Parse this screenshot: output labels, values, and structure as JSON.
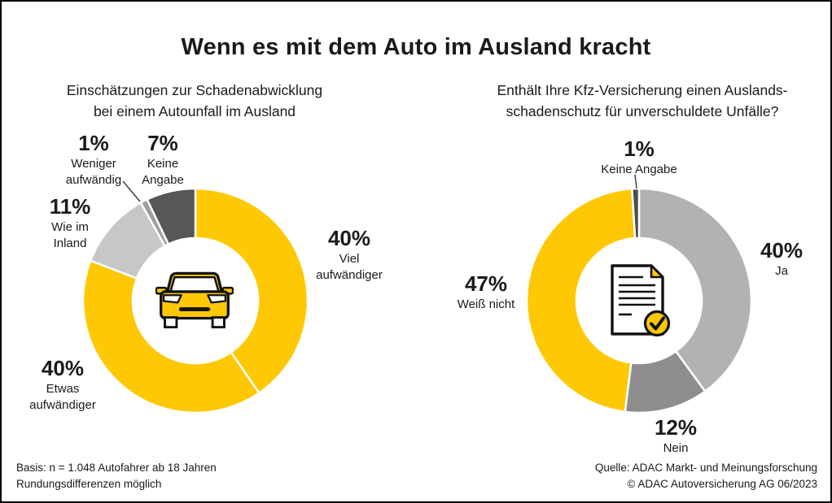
{
  "title": "Wenn es mit dem Auto im Ausland kracht",
  "colors": {
    "brand_yellow": "#FFC805",
    "light_gray": "#C7C7C7",
    "mid_gray": "#9E9E9E",
    "dark_gray": "#575757",
    "ja_gray": "#B2B2B2",
    "nein_gray": "#8D8D8D",
    "sliver_dark": "#4D4D4D",
    "text": "#1A1A1A"
  },
  "chart_data": [
    {
      "type": "pie",
      "variant": "donut",
      "unit": "%",
      "start_angle_deg": 0,
      "direction": "clockwise",
      "center_icon": "car-icon",
      "subtitle_lines": [
        "Einschätzungen zur Schadenabwicklung",
        "bei einem Autounfall im Ausland"
      ],
      "segments": [
        {
          "label": "Viel aufwändiger",
          "value": 40,
          "pct_text": "40%",
          "color": "#FFC805"
        },
        {
          "label": "Etwas aufwändiger",
          "value": 40,
          "pct_text": "40%",
          "color": "#FFC805"
        },
        {
          "label": "Wie im Inland",
          "value": 11,
          "pct_text": "11%",
          "color": "#C7C7C7"
        },
        {
          "label": "Weniger aufwändig",
          "value": 1,
          "pct_text": "1%",
          "color": "#9E9E9E"
        },
        {
          "label": "Keine Angabe",
          "value": 7,
          "pct_text": "7%",
          "color": "#575757"
        }
      ]
    },
    {
      "type": "pie",
      "variant": "donut",
      "unit": "%",
      "start_angle_deg": 0,
      "direction": "clockwise",
      "center_icon": "document-check-icon",
      "subtitle_lines": [
        "Enthält Ihre Kfz-Versicherung einen Auslands-",
        "schadenschutz für unverschuldete Unfälle?"
      ],
      "segments": [
        {
          "label": "Ja",
          "value": 40,
          "pct_text": "40%",
          "color": "#B2B2B2"
        },
        {
          "label": "Nein",
          "value": 12,
          "pct_text": "12%",
          "color": "#8D8D8D"
        },
        {
          "label": "Weiß nicht",
          "value": 47,
          "pct_text": "47%",
          "color": "#FFC805"
        },
        {
          "label": "Keine Angabe",
          "value": 1,
          "pct_text": "1%",
          "color": "#4D4D4D"
        }
      ]
    }
  ],
  "footnotes": {
    "left": [
      "Basis: n = 1.048 Autofahrer ab 18 Jahren",
      "Rundungsdifferenzen möglich"
    ],
    "right": [
      "Quelle: ADAC Markt- und Meinungsforschung",
      "© ADAC Autoversicherung AG 06/2023"
    ]
  }
}
